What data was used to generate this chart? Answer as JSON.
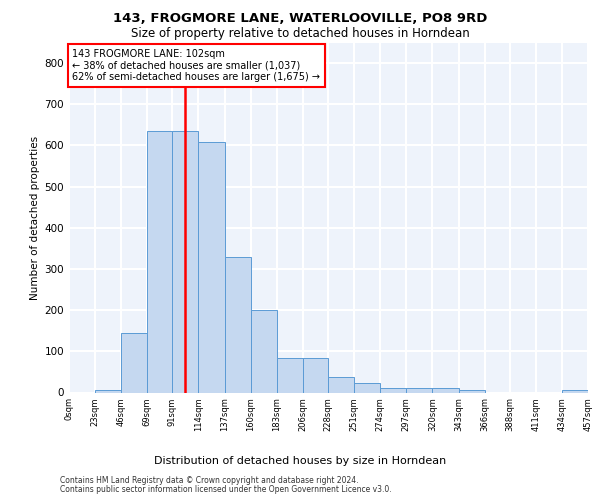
{
  "title1": "143, FROGMORE LANE, WATERLOOVILLE, PO8 9RD",
  "title2": "Size of property relative to detached houses in Horndean",
  "xlabel": "Distribution of detached houses by size in Horndean",
  "ylabel": "Number of detached properties",
  "bin_labels": [
    "0sqm",
    "23sqm",
    "46sqm",
    "69sqm",
    "91sqm",
    "114sqm",
    "137sqm",
    "160sqm",
    "183sqm",
    "206sqm",
    "228sqm",
    "251sqm",
    "274sqm",
    "297sqm",
    "320sqm",
    "343sqm",
    "366sqm",
    "388sqm",
    "411sqm",
    "434sqm",
    "457sqm"
  ],
  "bar_heights": [
    0,
    5,
    145,
    635,
    635,
    608,
    330,
    200,
    83,
    83,
    38,
    22,
    12,
    10,
    10,
    5,
    0,
    0,
    0,
    5
  ],
  "bar_color": "#c5d8f0",
  "bar_edge_color": "#5b9bd5",
  "vline_x": 102,
  "bin_edges": [
    0,
    23,
    46,
    69,
    91,
    114,
    137,
    160,
    183,
    206,
    228,
    251,
    274,
    297,
    320,
    343,
    366,
    388,
    411,
    434,
    457
  ],
  "annotation_text": "143 FROGMORE LANE: 102sqm\n← 38% of detached houses are smaller (1,037)\n62% of semi-detached houses are larger (1,675) →",
  "annotation_box_color": "white",
  "annotation_box_edge": "red",
  "vline_color": "red",
  "ylim": [
    0,
    850
  ],
  "yticks": [
    0,
    100,
    200,
    300,
    400,
    500,
    600,
    700,
    800
  ],
  "footer1": "Contains HM Land Registry data © Crown copyright and database right 2024.",
  "footer2": "Contains public sector information licensed under the Open Government Licence v3.0.",
  "bg_color": "#eef3fb",
  "grid_color": "white"
}
